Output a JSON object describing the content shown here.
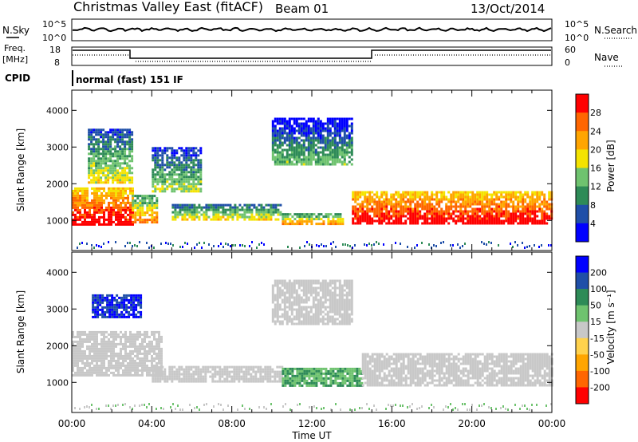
{
  "header": {
    "title": "Christmas Valley East (fitACF)",
    "beam": "Beam 01",
    "date": "13/Oct/2014"
  },
  "strip1": {
    "left_label": "N.Sky",
    "right_label": "N.Search",
    "left_ticks": [
      "10^5",
      "10^0"
    ],
    "right_ticks": [
      "10^5",
      "10^0"
    ]
  },
  "strip2": {
    "left_label_line1": "Freq.",
    "left_label_line2": "[MHz]",
    "right_label": "Nave",
    "left_ticks": [
      "18",
      "8"
    ],
    "right_ticks": [
      "60",
      "0"
    ]
  },
  "cpid": {
    "label": "CPID",
    "value": "normal (fast) 151 IF"
  },
  "colors": {
    "power_scale": [
      "#0000ff",
      "#1f4fa8",
      "#2e8b57",
      "#6fc36f",
      "#f4e300",
      "#ffa500",
      "#ff6600",
      "#ff0000"
    ],
    "velocity_scale": [
      "#0000ff",
      "#1f4fa8",
      "#2e8b57",
      "#6fc36f",
      "#c8c8c8",
      "#ffd24d",
      "#ffa500",
      "#ff6600",
      "#ff0000"
    ],
    "ground_scatter": "#c8c8c8"
  },
  "chart_data": [
    {
      "type": "heatmap",
      "panel": "power",
      "xlabel": "",
      "ylabel": "Slant Range [km]",
      "x_ticks": [
        "00:00",
        "04:00",
        "08:00",
        "12:00",
        "16:00",
        "20:00",
        "00:00"
      ],
      "y_ticks": [
        1000,
        2000,
        3000,
        4000
      ],
      "ylim": [
        180,
        4550
      ],
      "colorbar_label": "Power [dB]",
      "colorbar_ticks": [
        4,
        8,
        12,
        16,
        20,
        24,
        28
      ],
      "scatter_regions": [
        {
          "t0": 0.0,
          "t1": 3.0,
          "r0": 900,
          "r1": 1900,
          "level": 26
        },
        {
          "t0": 3.0,
          "t1": 4.3,
          "r0": 950,
          "r1": 1700,
          "level": 18
        },
        {
          "t0": 0.8,
          "t1": 3.0,
          "r0": 2000,
          "r1": 3500,
          "level": 12
        },
        {
          "t0": 4.0,
          "t1": 6.5,
          "r0": 1800,
          "r1": 3000,
          "level": 10
        },
        {
          "t0": 5.0,
          "t1": 10.5,
          "r0": 1000,
          "r1": 1450,
          "level": 14
        },
        {
          "t0": 10.5,
          "t1": 13.5,
          "r0": 900,
          "r1": 1200,
          "level": 18
        },
        {
          "t0": 10.0,
          "t1": 14.0,
          "r0": 2500,
          "r1": 3800,
          "level": 8
        },
        {
          "t0": 14.0,
          "t1": 24.0,
          "r0": 900,
          "r1": 1800,
          "level": 26
        }
      ]
    },
    {
      "type": "heatmap",
      "panel": "velocity",
      "xlabel": "Time UT",
      "ylabel": "Slant Range [km]",
      "x_ticks": [
        "00:00",
        "04:00",
        "08:00",
        "12:00",
        "16:00",
        "20:00",
        "00:00"
      ],
      "y_ticks": [
        1000,
        2000,
        3000,
        4000
      ],
      "ylim": [
        180,
        4550
      ],
      "colorbar_label": "Velocity [m s⁻¹]",
      "colorbar_ticks": [
        200,
        100,
        50,
        15,
        -15,
        -50,
        -100,
        -200
      ],
      "scatter_regions": [
        {
          "t0": 0.0,
          "t1": 4.5,
          "r0": 1200,
          "r1": 2400,
          "vel": 0
        },
        {
          "t0": 4.0,
          "t1": 10.5,
          "r0": 1000,
          "r1": 1450,
          "vel": 0
        },
        {
          "t0": 1.0,
          "t1": 3.5,
          "r0": 2800,
          "r1": 3400,
          "vel": 150
        },
        {
          "t0": 10.5,
          "t1": 14.5,
          "r0": 900,
          "r1": 1400,
          "vel": 30
        },
        {
          "t0": 14.5,
          "t1": 24.0,
          "r0": 900,
          "r1": 1800,
          "vel": 0
        },
        {
          "t0": 10.0,
          "t1": 14.0,
          "r0": 2600,
          "r1": 3800,
          "vel": 0
        }
      ]
    }
  ]
}
